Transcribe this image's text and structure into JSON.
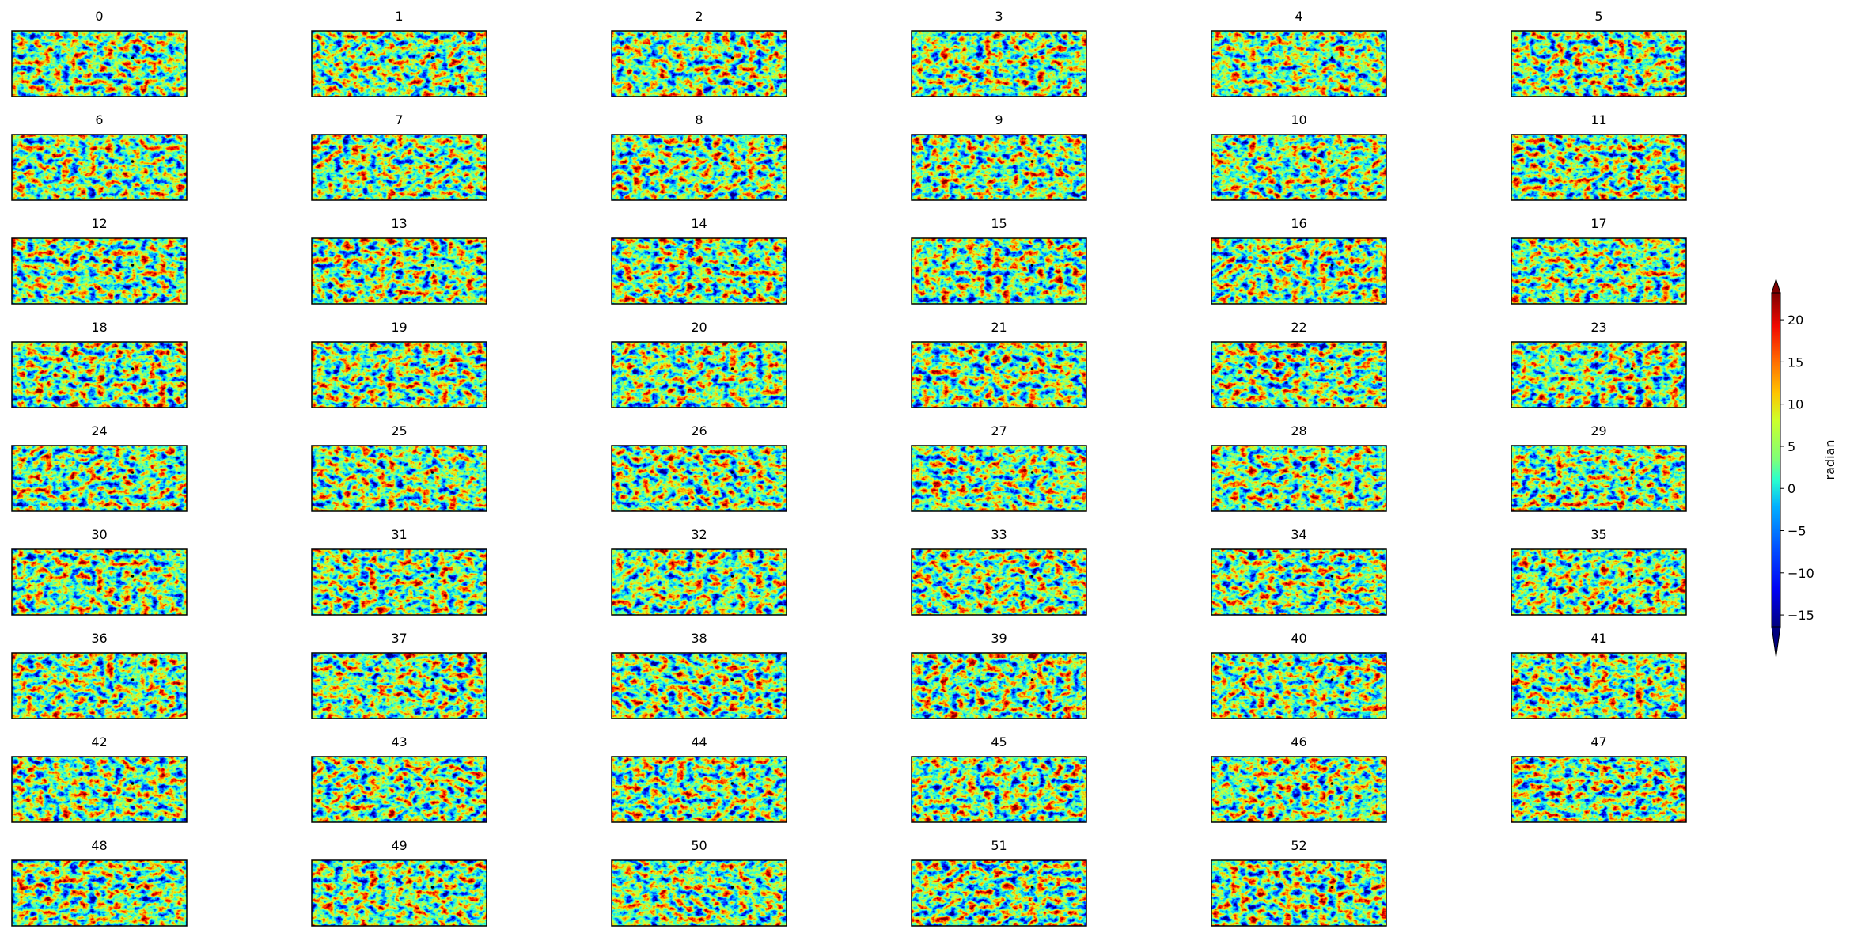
{
  "chart_data": {
    "type": "image-grid",
    "panel_titles": [
      "0",
      "1",
      "2",
      "3",
      "4",
      "5",
      "6",
      "7",
      "8",
      "9",
      "10",
      "11",
      "12",
      "13",
      "14",
      "15",
      "16",
      "17",
      "18",
      "19",
      "20",
      "21",
      "22",
      "23",
      "24",
      "25",
      "26",
      "27",
      "28",
      "29",
      "30",
      "31",
      "32",
      "33",
      "34",
      "35",
      "36",
      "37",
      "38",
      "39",
      "40",
      "41",
      "42",
      "43",
      "44",
      "45",
      "46",
      "47",
      "48",
      "49",
      "50",
      "51",
      "52"
    ],
    "columns": 6,
    "colorbar": {
      "label": "radian",
      "colormap": "jet",
      "extend": "both",
      "lim": [
        -16.4,
        23.2
      ],
      "ticks": [
        {
          "value": -15,
          "label": "−15"
        },
        {
          "value": -10,
          "label": "−10"
        },
        {
          "value": -5,
          "label": "−5"
        },
        0,
        5,
        10,
        15,
        20
      ]
    }
  }
}
